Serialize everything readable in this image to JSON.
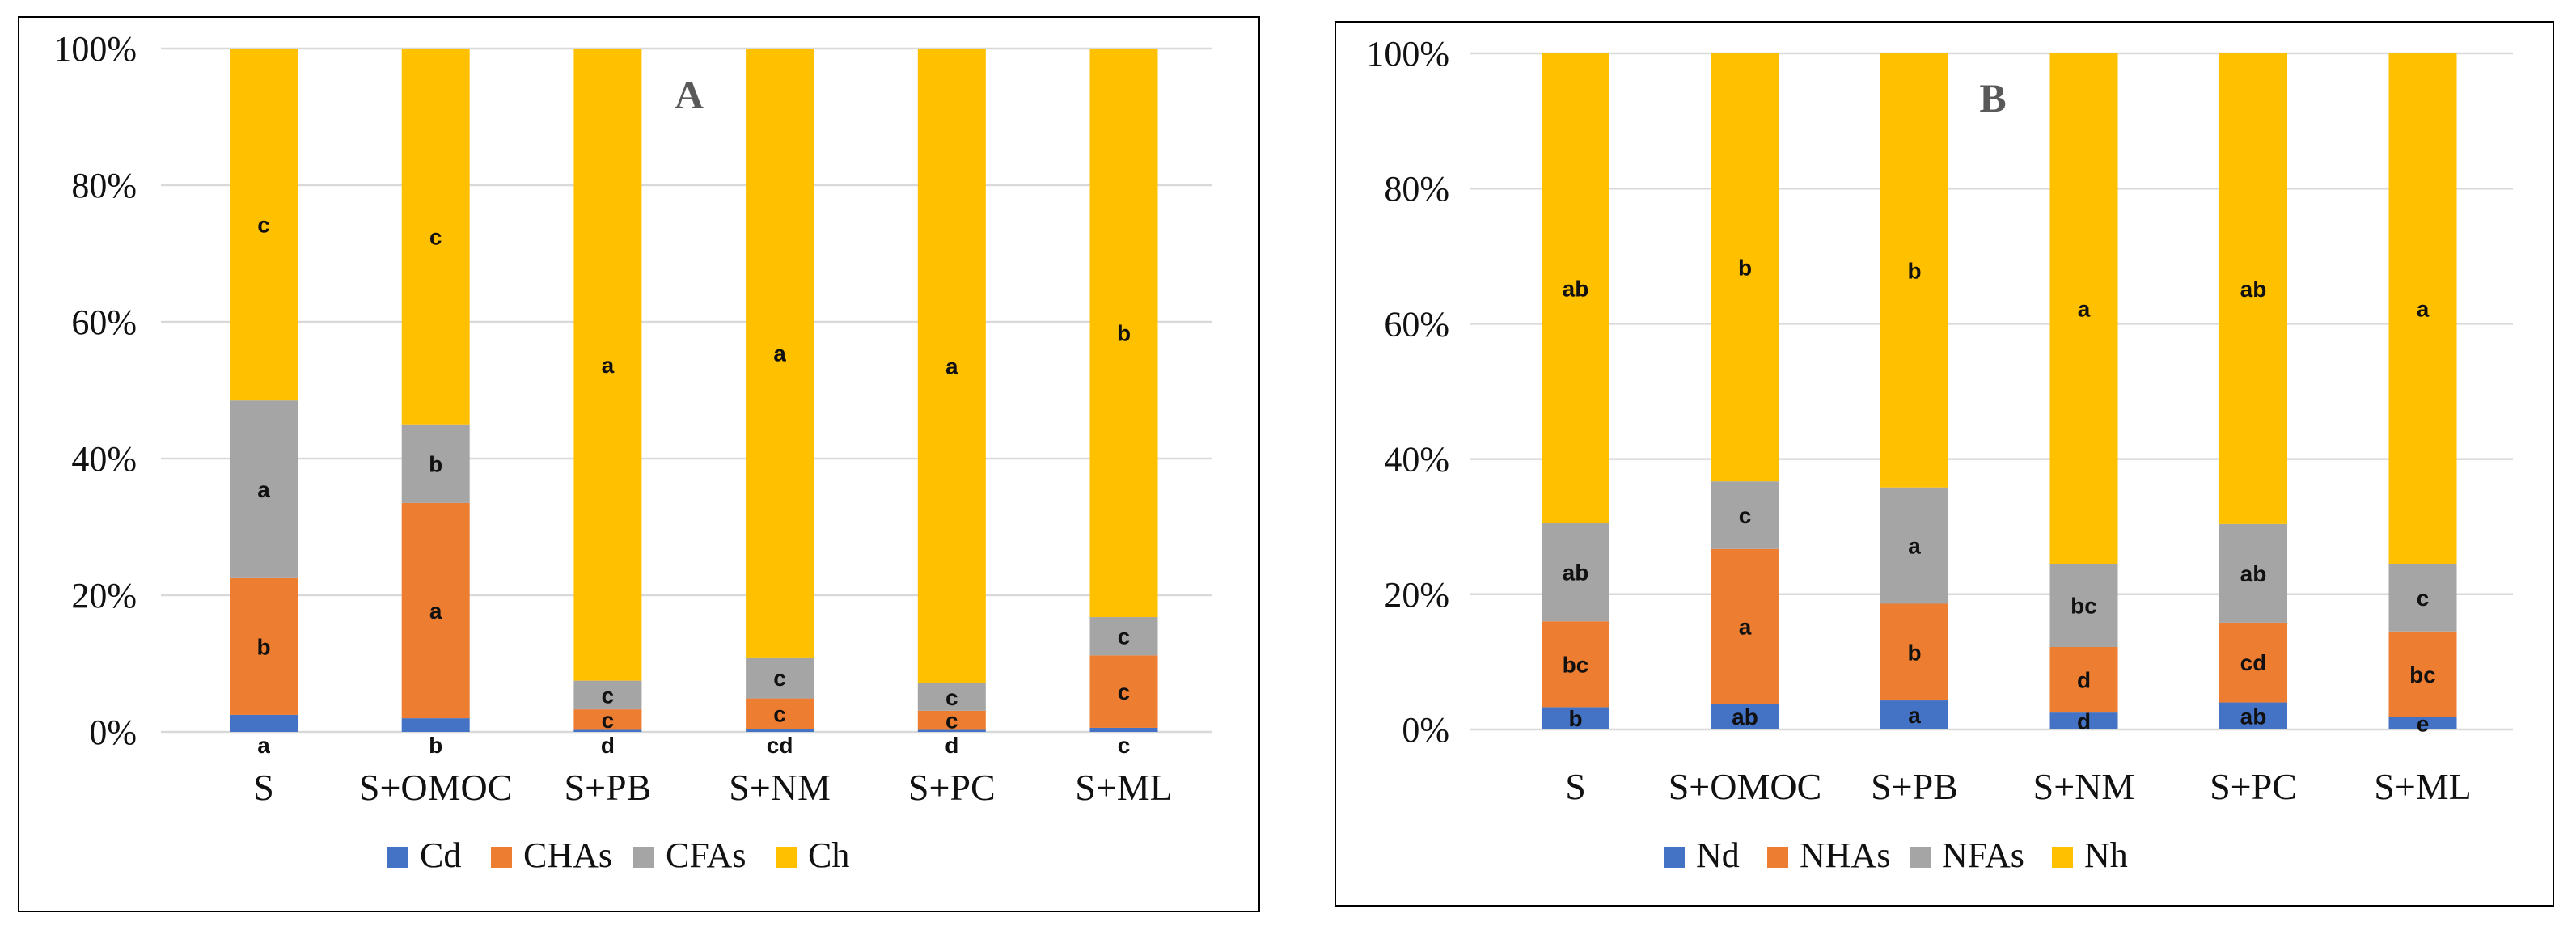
{
  "chart_data": [
    {
      "type": "bar",
      "stacked": "percent",
      "panel_label": "A",
      "categories": [
        "S",
        "S+OMOC",
        "S+PB",
        "S+NM",
        "S+PC",
        "S+ML"
      ],
      "yticks": [
        "0%",
        "20%",
        "40%",
        "60%",
        "80%",
        "100%"
      ],
      "ylim": [
        0,
        100
      ],
      "legend_position": "bottom",
      "series": [
        {
          "name": "Cd",
          "color": "#4472C4",
          "values": [
            2.5,
            2.0,
            0.3,
            0.4,
            0.3,
            0.6
          ],
          "labels": [
            "a",
            "b",
            "d",
            "cd",
            "d",
            "c"
          ]
        },
        {
          "name": "CHAs",
          "color": "#ED7D31",
          "values": [
            20.0,
            31.5,
            3.0,
            4.5,
            2.8,
            10.6
          ],
          "labels": [
            "b",
            "a",
            "c",
            "c",
            "c",
            "c"
          ]
        },
        {
          "name": "CFAs",
          "color": "#A5A5A5",
          "values": [
            26.0,
            11.5,
            4.2,
            6.0,
            4.0,
            5.6
          ],
          "labels": [
            "a",
            "b",
            "c",
            "c",
            "c",
            "c"
          ]
        },
        {
          "name": "Ch",
          "color": "#FFC000",
          "values": [
            51.5,
            55.0,
            92.5,
            89.1,
            92.9,
            83.2
          ],
          "labels": [
            "c",
            "c",
            "a",
            "a",
            "a",
            "b"
          ]
        }
      ]
    },
    {
      "type": "bar",
      "stacked": "percent",
      "panel_label": "B",
      "categories": [
        "S",
        "S+OMOC",
        "S+PB",
        "S+NM",
        "S+PC",
        "S+ML"
      ],
      "yticks": [
        "0%",
        "20%",
        "40%",
        "60%",
        "80%",
        "100%"
      ],
      "ylim": [
        0,
        100
      ],
      "legend_position": "bottom",
      "series": [
        {
          "name": "Nd",
          "color": "#4472C4",
          "values": [
            3.3,
            3.8,
            4.3,
            2.5,
            4.0,
            1.8
          ],
          "labels": [
            "b",
            "ab",
            "a",
            "d",
            "ab",
            "e"
          ]
        },
        {
          "name": "NHAs",
          "color": "#ED7D31",
          "values": [
            12.7,
            22.9,
            14.3,
            9.7,
            11.8,
            12.7
          ],
          "labels": [
            "bc",
            "a",
            "b",
            "d",
            "cd",
            "bc"
          ]
        },
        {
          "name": "NFAs",
          "color": "#A5A5A5",
          "values": [
            14.5,
            10.0,
            17.2,
            12.3,
            14.6,
            10.0
          ],
          "labels": [
            "ab",
            "c",
            "a",
            "bc",
            "ab",
            "c"
          ]
        },
        {
          "name": "Nh",
          "color": "#FFC000",
          "values": [
            69.5,
            63.3,
            64.2,
            75.5,
            69.6,
            75.5
          ],
          "labels": [
            "ab",
            "b",
            "b",
            "a",
            "ab",
            "a"
          ]
        }
      ]
    }
  ]
}
